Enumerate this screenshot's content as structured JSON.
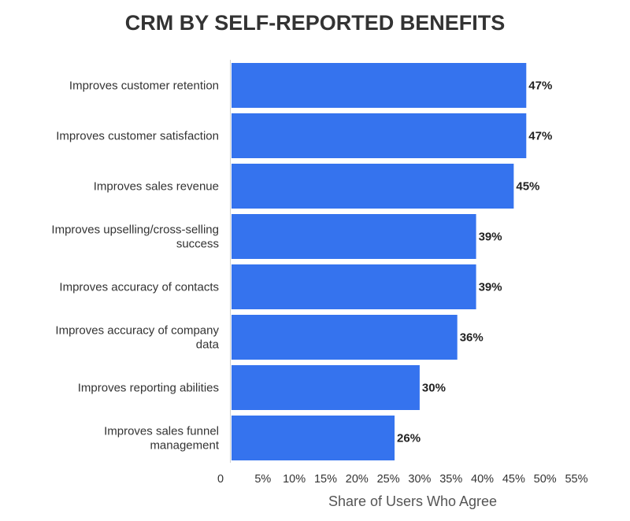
{
  "chart_data": {
    "type": "bar",
    "orientation": "horizontal",
    "title": "CRM BY SELF-REPORTED BENEFITS",
    "xlabel": "Share of Users Who Agree",
    "ylabel": "",
    "categories": [
      [
        "Improves customer retention"
      ],
      [
        "Improves customer satisfaction"
      ],
      [
        "Improves sales revenue"
      ],
      [
        "Improves upselling/cross-selling",
        "success"
      ],
      [
        "Improves accuracy of contacts"
      ],
      [
        "Improves accuracy of company",
        "data"
      ],
      [
        "Improves reporting abilities"
      ],
      [
        "Improves sales funnel",
        "management"
      ]
    ],
    "values": [
      47,
      47,
      45,
      39,
      39,
      36,
      30,
      26
    ],
    "value_labels": [
      "47%",
      "47%",
      "45%",
      "39%",
      "39%",
      "36%",
      "30%",
      "26%"
    ],
    "xlim": [
      0,
      55
    ],
    "x_ticks": [
      0,
      5,
      10,
      15,
      20,
      25,
      30,
      35,
      40,
      45,
      50,
      55
    ],
    "x_tick_labels": [
      "0",
      "5%",
      "10%",
      "15%",
      "20%",
      "25%",
      "30%",
      "35%",
      "40%",
      "45%",
      "50%",
      "55%"
    ],
    "grid": false,
    "colors": {
      "bar": "#3573ee",
      "axis": "#cfcfcf",
      "text": "#333333"
    }
  }
}
